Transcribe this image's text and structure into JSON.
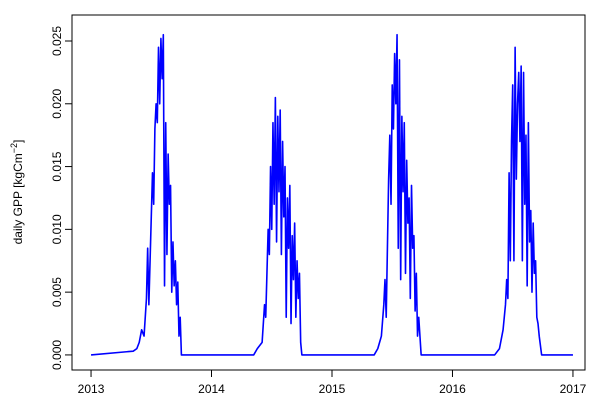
{
  "chart_data": {
    "type": "line",
    "ylabel": "daily GPP [kgCm",
    "ylabel_superscript": "−2",
    "ylabel_end": "]",
    "color": "#0000ff",
    "x": [
      2013.0,
      2013.35,
      2013.38,
      2013.4,
      2013.42,
      2013.44,
      2013.46,
      2013.47,
      2013.48,
      2013.5,
      2013.51,
      2013.52,
      2013.53,
      2013.54,
      2013.55,
      2013.56,
      2013.57,
      2013.58,
      2013.59,
      2013.6,
      2013.61,
      2013.62,
      2013.63,
      2013.64,
      2013.65,
      2013.66,
      2013.67,
      2013.68,
      2013.69,
      2013.7,
      2013.71,
      2013.72,
      2013.73,
      2013.74,
      2013.75,
      2014.35,
      2014.38,
      2014.42,
      2014.44,
      2014.45,
      2014.46,
      2014.47,
      2014.48,
      2014.49,
      2014.5,
      2014.51,
      2014.52,
      2014.53,
      2014.54,
      2014.55,
      2014.56,
      2014.57,
      2014.58,
      2014.59,
      2014.6,
      2014.61,
      2014.62,
      2014.63,
      2014.64,
      2014.65,
      2014.66,
      2014.67,
      2014.68,
      2014.69,
      2014.7,
      2014.71,
      2014.72,
      2014.73,
      2014.74,
      2014.75,
      2015.35,
      2015.38,
      2015.41,
      2015.43,
      2015.44,
      2015.45,
      2015.46,
      2015.47,
      2015.48,
      2015.49,
      2015.5,
      2015.51,
      2015.52,
      2015.53,
      2015.54,
      2015.55,
      2015.56,
      2015.57,
      2015.58,
      2015.59,
      2015.6,
      2015.61,
      2015.62,
      2015.63,
      2015.64,
      2015.65,
      2015.66,
      2015.67,
      2015.68,
      2015.69,
      2015.7,
      2015.71,
      2015.72,
      2015.74,
      2016.35,
      2016.39,
      2016.42,
      2016.44,
      2016.45,
      2016.46,
      2016.47,
      2016.48,
      2016.49,
      2016.5,
      2016.51,
      2016.52,
      2016.53,
      2016.54,
      2016.55,
      2016.56,
      2016.57,
      2016.58,
      2016.59,
      2016.6,
      2016.61,
      2016.62,
      2016.63,
      2016.64,
      2016.65,
      2016.66,
      2016.67,
      2016.68,
      2016.69,
      2016.7,
      2016.71,
      2016.72,
      2016.74,
      2017.0
    ],
    "values": [
      0,
      0.0003,
      0.0005,
      0.001,
      0.002,
      0.0015,
      0.0045,
      0.0085,
      0.004,
      0.011,
      0.0145,
      0.012,
      0.018,
      0.02,
      0.0185,
      0.0245,
      0.02,
      0.0252,
      0.022,
      0.0255,
      0.0055,
      0.0185,
      0.008,
      0.016,
      0.012,
      0.0135,
      0.005,
      0.009,
      0.0055,
      0.0075,
      0.004,
      0.0058,
      0.0015,
      0.003,
      0,
      0,
      0.0005,
      0.001,
      0.004,
      0.003,
      0.0065,
      0.01,
      0.008,
      0.015,
      0.01,
      0.0185,
      0.012,
      0.0205,
      0.009,
      0.019,
      0.013,
      0.0195,
      0.008,
      0.017,
      0.011,
      0.015,
      0.003,
      0.0125,
      0.0085,
      0.0135,
      0.0025,
      0.0095,
      0.006,
      0.0105,
      0.003,
      0.0075,
      0.0045,
      0.0065,
      0.001,
      0,
      0,
      0.0005,
      0.0015,
      0.004,
      0.006,
      0.003,
      0.0085,
      0.014,
      0.0175,
      0.012,
      0.0215,
      0.018,
      0.024,
      0.02,
      0.0255,
      0.0085,
      0.0235,
      0.006,
      0.019,
      0.013,
      0.0185,
      0.0065,
      0.0155,
      0.0105,
      0.0125,
      0.0045,
      0.0135,
      0.0085,
      0.0095,
      0.0035,
      0.0065,
      0.0015,
      0.003,
      0,
      0,
      0.0005,
      0.002,
      0.004,
      0.006,
      0.0045,
      0.0145,
      0.0075,
      0.017,
      0.0215,
      0.0075,
      0.0245,
      0.014,
      0.02,
      0.0225,
      0.017,
      0.023,
      0.0075,
      0.0225,
      0.012,
      0.0175,
      0.0055,
      0.0185,
      0.009,
      0.0115,
      0.005,
      0.0105,
      0.0065,
      0.0075,
      0.003,
      0.0025,
      0.0015,
      0,
      0
    ],
    "xlim": [
      2012.842,
      2017.1
    ],
    "ylim": [
      -0.0012,
      0.02707
    ],
    "xticks": [
      2013,
      2014,
      2015,
      2016,
      2017
    ],
    "yticks": [
      {
        "value": 0,
        "label": "0.000"
      },
      {
        "value": 0.005,
        "label": "0.005"
      },
      {
        "value": 0.01,
        "label": "0.010"
      },
      {
        "value": 0.015,
        "label": "0.015"
      },
      {
        "value": 0.02,
        "label": "0.020"
      },
      {
        "value": 0.025,
        "label": "0.025"
      }
    ]
  }
}
